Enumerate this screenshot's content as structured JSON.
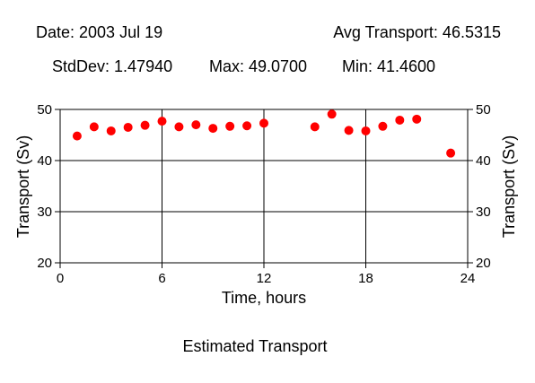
{
  "header": {
    "date": "Date: 2003 Jul 19",
    "avg": "Avg Transport: 46.5315",
    "stddev": "StdDev: 1.47940",
    "max": "Max: 49.0700",
    "min": "Min: 41.4600"
  },
  "footer": {
    "caption": "Estimated Transport"
  },
  "colors": {
    "marker": "#ff0000",
    "axis": "#000000",
    "background": "#ffffff"
  },
  "chart_data": {
    "type": "scatter",
    "title": "Estimated Transport",
    "xlabel": "Time, hours",
    "ylabel": "Transport (Sv)",
    "ylabel_right": "Transport (Sv)",
    "xlim": [
      0,
      24
    ],
    "ylim": [
      20,
      50
    ],
    "xticks": [
      0,
      6,
      12,
      18,
      24
    ],
    "yticks": [
      20,
      30,
      40,
      50
    ],
    "grid": true,
    "series": [
      {
        "x": [
          1,
          2,
          3,
          4,
          5,
          6,
          7,
          8,
          9,
          10,
          11,
          12,
          15,
          16,
          17,
          18,
          19,
          20,
          21,
          23
        ],
        "y": [
          44.8,
          46.6,
          45.8,
          46.5,
          46.9,
          47.7,
          46.6,
          47.0,
          46.3,
          46.7,
          46.8,
          47.3,
          46.6,
          49.07,
          45.9,
          45.8,
          46.7,
          47.9,
          48.1,
          41.46
        ]
      }
    ]
  }
}
